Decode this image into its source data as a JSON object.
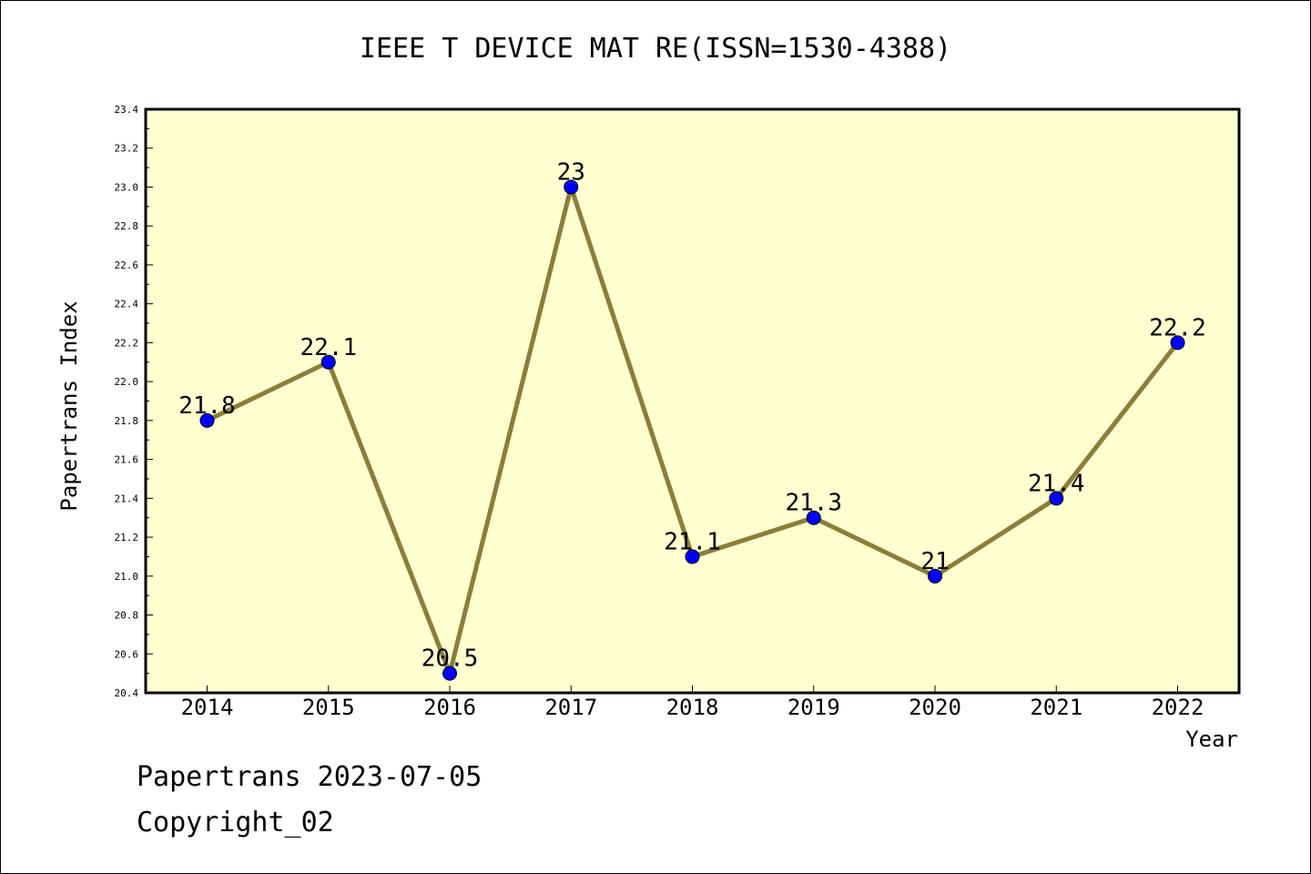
{
  "chart_data": {
    "type": "line",
    "title": "IEEE T DEVICE MAT RE(ISSN=1530-4388)",
    "xlabel": "Year",
    "ylabel": "Papertrans Index",
    "ylim": [
      20.4,
      23.4
    ],
    "y_ticks": [
      "20.4",
      "20.6",
      "20.8",
      "21.0",
      "21.2",
      "21.4",
      "21.6",
      "21.8",
      "22.0",
      "22.2",
      "22.4",
      "22.6",
      "22.8",
      "23.0",
      "23.2",
      "23.4"
    ],
    "x": [
      "2014",
      "2015",
      "2016",
      "2017",
      "2018",
      "2019",
      "2020",
      "2021",
      "2022"
    ],
    "series": [
      {
        "values": [
          21.8,
          22.1,
          20.5,
          23,
          21.1,
          21.3,
          21,
          21.4,
          22.2
        ],
        "labels": [
          "21.8",
          "22.1",
          "20.5",
          "23",
          "21.1",
          "21.3",
          "21",
          "21.4",
          "22.2"
        ],
        "line_color": "#8b7d3a",
        "marker_color": "#0000ff"
      }
    ],
    "plot_background": "#ffffd0",
    "grid": false,
    "legend": "none"
  },
  "footer": {
    "line1": "Papertrans 2023-07-05",
    "line2": "Copyright_02"
  }
}
